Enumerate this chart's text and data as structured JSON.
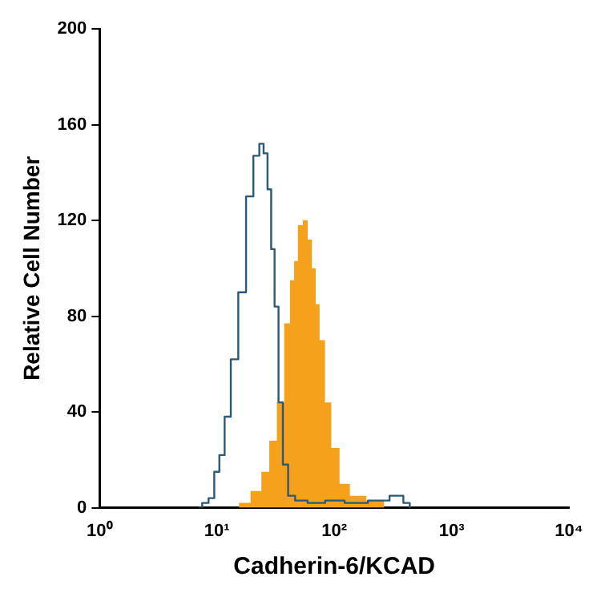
{
  "chart_data": {
    "type": "step",
    "xlabel": "Cadherin-6/KCAD",
    "ylabel": "Relative Cell Number",
    "log": "x",
    "xlim": [
      1,
      10000
    ],
    "xticks": [
      {
        "value": 1,
        "label": "10⁰"
      },
      {
        "value": 10,
        "label": "10¹"
      },
      {
        "value": 100,
        "label": "10²"
      },
      {
        "value": 1000,
        "label": "10³"
      },
      {
        "value": 10000,
        "label": "10⁴"
      }
    ],
    "ylim": [
      0,
      200
    ],
    "yticks": [
      0,
      40,
      80,
      120,
      160,
      200
    ],
    "grid": false,
    "legend": false,
    "series": [
      {
        "type": "area",
        "color": "#f5a11c",
        "x": [
          14,
          17,
          22,
          26,
          30,
          35,
          40,
          44,
          47,
          51,
          57,
          62,
          67,
          72,
          78,
          89,
          100,
          123,
          150,
          235,
          300
        ],
        "values": [
          0,
          2,
          7,
          15,
          28,
          44,
          77,
          95,
          103,
          118,
          120,
          112,
          100,
          85,
          70,
          44,
          25,
          10,
          5,
          3,
          0
        ]
      },
      {
        "color": "#2a5a7a",
        "x": [
          7,
          8,
          9,
          10,
          11,
          12.3,
          14,
          16.5,
          19,
          22,
          24,
          26,
          28,
          30,
          32,
          35,
          38,
          43,
          50,
          70,
          100,
          150,
          250,
          350,
          430,
          450
        ],
        "values": [
          0,
          2,
          4,
          15,
          22,
          38,
          62,
          90,
          130,
          147,
          152,
          148,
          133,
          108,
          84,
          44,
          18,
          5,
          3,
          2,
          3,
          2,
          3,
          5,
          2,
          0
        ]
      }
    ]
  }
}
